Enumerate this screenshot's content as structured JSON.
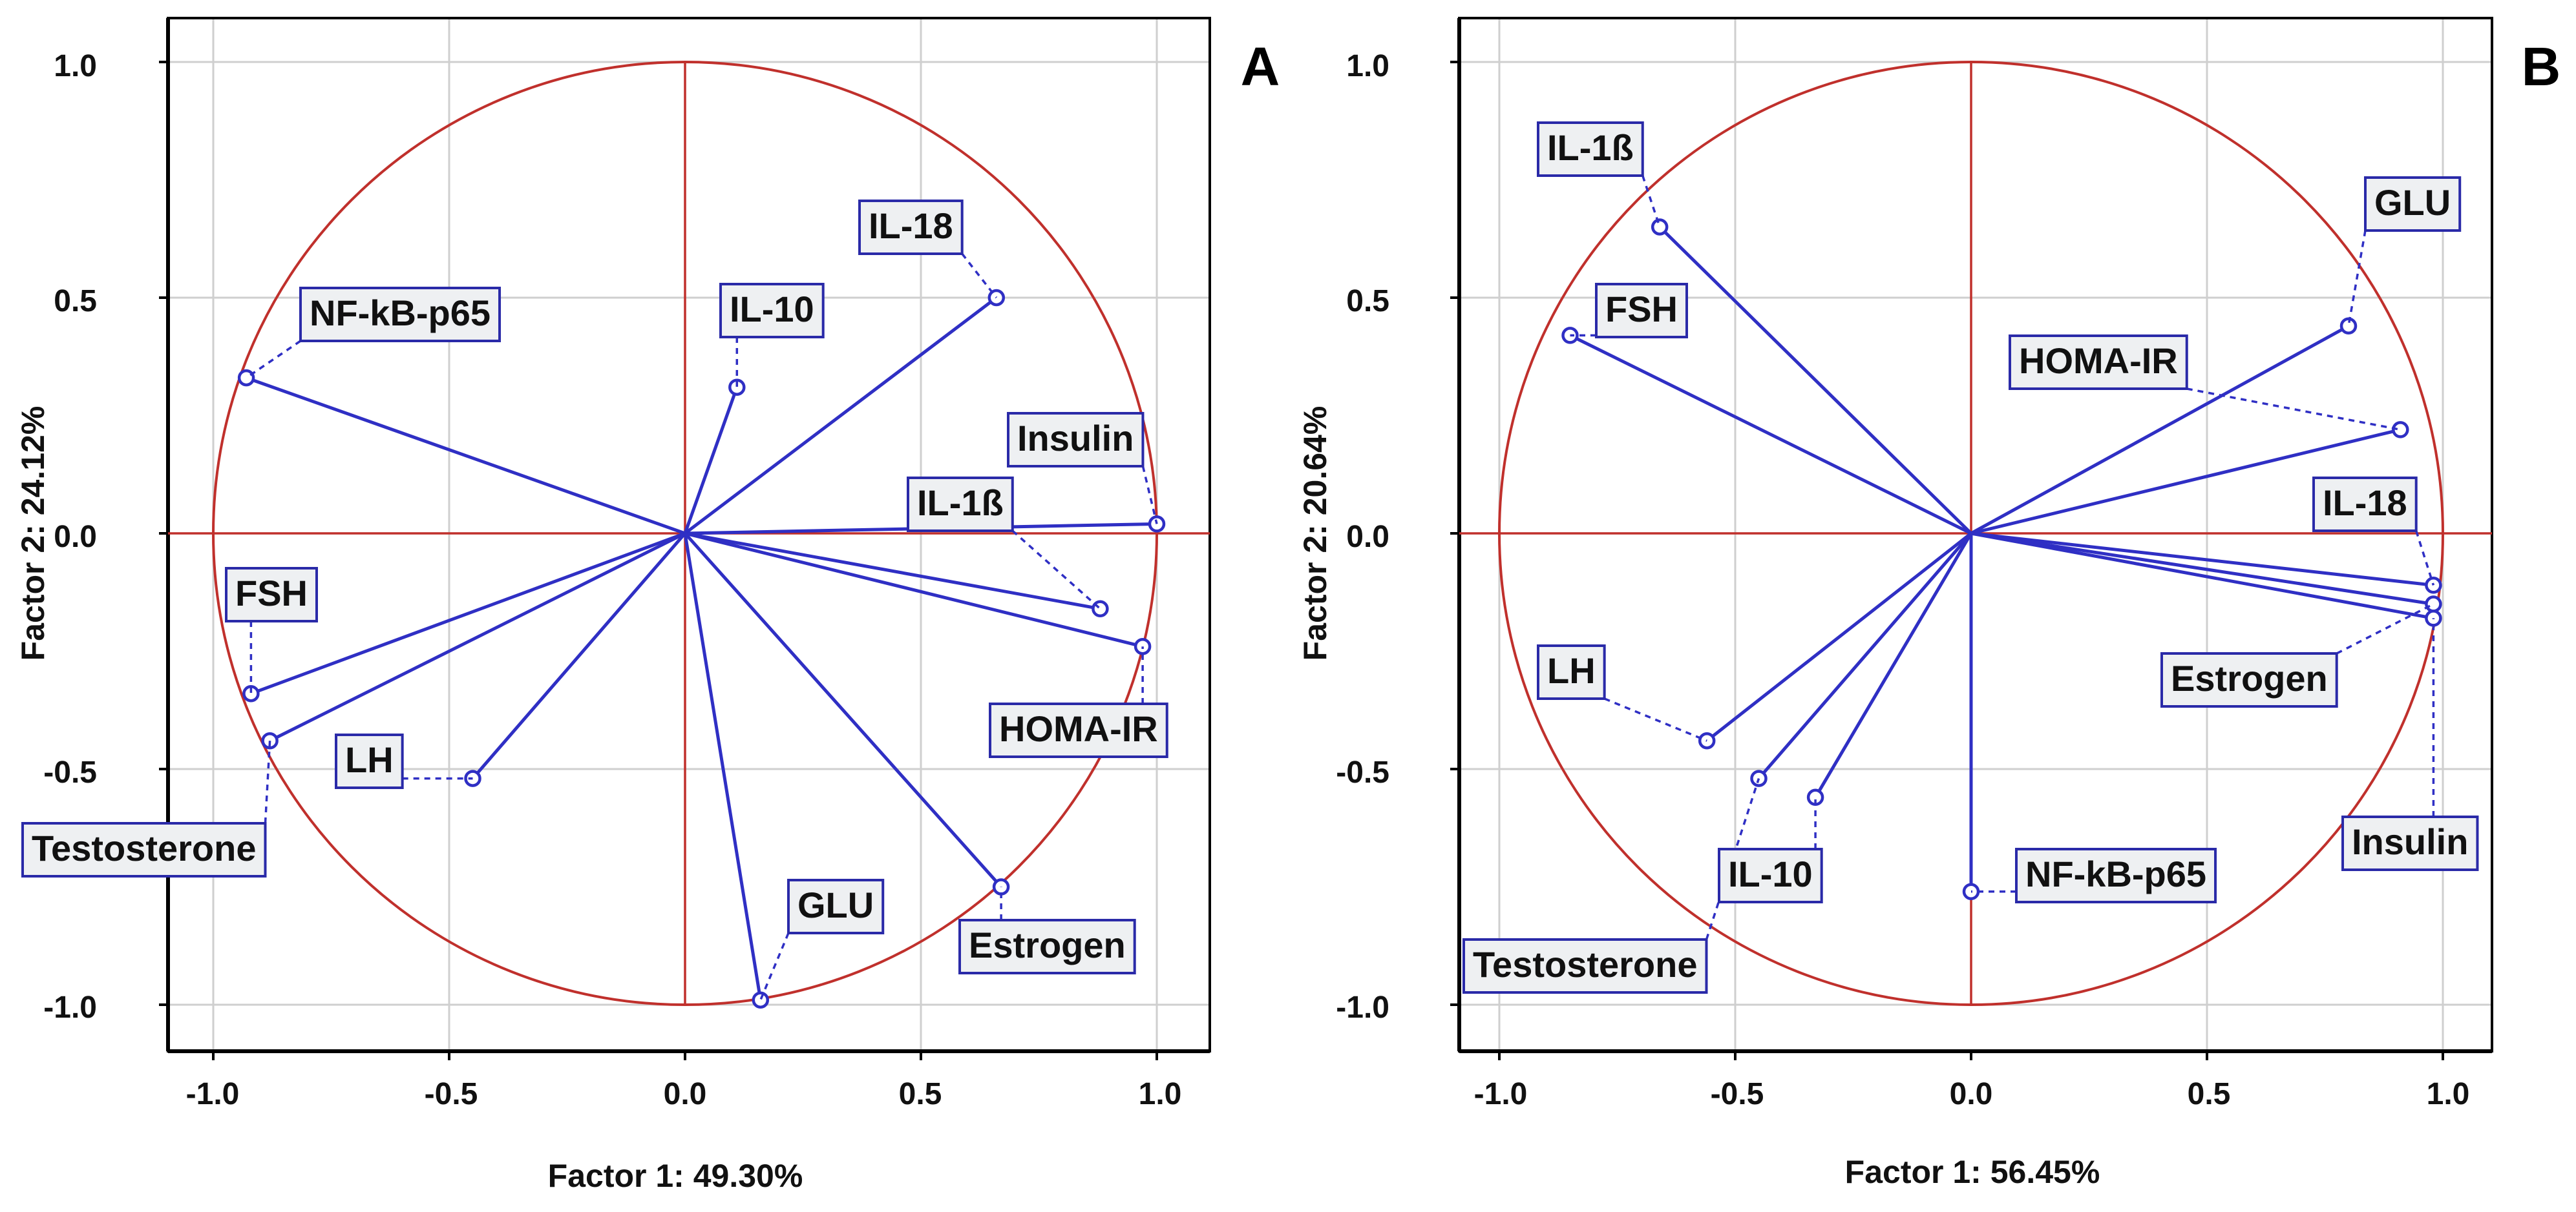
{
  "colors": {
    "vector": "#2f2fc4",
    "circle": "#c0302c",
    "grid": "#cfcfcf",
    "frame": "#000000",
    "label_border": "#2a2aa8",
    "label_fill": "#eef0f2"
  },
  "chart_data": [
    {
      "type": "scatter",
      "subtype": "pca-correlation-circle",
      "panel_letter": "A",
      "xlabel": "Factor 1: 49.30%",
      "ylabel": "Factor 2: 24.12%",
      "xlim": [
        -1.1,
        1.1
      ],
      "ylim": [
        -1.1,
        1.1
      ],
      "x_ticks": [
        "-1.0",
        "-0.5",
        "0.0",
        "0.5",
        "1.0"
      ],
      "y_ticks": [
        "1.0",
        "0.5",
        "0.0",
        "-0.5",
        "-1.0"
      ],
      "grid": true,
      "unit_circle": true,
      "points": [
        {
          "name": "NF-kB-p65",
          "x": -0.93,
          "y": 0.33
        },
        {
          "name": "IL-10",
          "x": 0.11,
          "y": 0.31
        },
        {
          "name": "IL-18",
          "x": 0.66,
          "y": 0.5
        },
        {
          "name": "Insulin",
          "x": 1.0,
          "y": 0.02
        },
        {
          "name": "IL-1ß",
          "x": 0.88,
          "y": -0.16
        },
        {
          "name": "HOMA-IR",
          "x": 0.97,
          "y": -0.24
        },
        {
          "name": "FSH",
          "x": -0.92,
          "y": -0.34
        },
        {
          "name": "Testosterone",
          "x": -0.88,
          "y": -0.44
        },
        {
          "name": "LH",
          "x": -0.45,
          "y": -0.52
        },
        {
          "name": "GLU",
          "x": 0.16,
          "y": -0.99
        },
        {
          "name": "Estrogen",
          "x": 0.67,
          "y": -0.75
        }
      ]
    },
    {
      "type": "scatter",
      "subtype": "pca-correlation-circle",
      "panel_letter": "B",
      "xlabel": "Factor 1: 56.45%",
      "ylabel": "Factor 2: 20.64%",
      "xlim": [
        -1.1,
        1.1
      ],
      "ylim": [
        -1.1,
        1.1
      ],
      "x_ticks": [
        "-1.0",
        "-0.5",
        "0.0",
        "0.5",
        "1.0"
      ],
      "y_ticks": [
        "1.0",
        "0.5",
        "0.0",
        "-0.5",
        "-1.0"
      ],
      "grid": true,
      "unit_circle": true,
      "points": [
        {
          "name": "IL-1ß",
          "x": -0.66,
          "y": 0.65
        },
        {
          "name": "FSH",
          "x": -0.85,
          "y": 0.42
        },
        {
          "name": "GLU",
          "x": 0.8,
          "y": 0.44
        },
        {
          "name": "HOMA-IR",
          "x": 0.91,
          "y": 0.22
        },
        {
          "name": "IL-18",
          "x": 0.98,
          "y": -0.11
        },
        {
          "name": "Estrogen",
          "x": 0.98,
          "y": -0.15
        },
        {
          "name": "Insulin",
          "x": 0.98,
          "y": -0.18
        },
        {
          "name": "LH",
          "x": -0.56,
          "y": -0.44
        },
        {
          "name": "Testosterone",
          "x": -0.45,
          "y": -0.52
        },
        {
          "name": "IL-10",
          "x": -0.33,
          "y": -0.56
        },
        {
          "name": "NF-kB-p65",
          "x": 0.0,
          "y": -0.76
        }
      ]
    }
  ]
}
